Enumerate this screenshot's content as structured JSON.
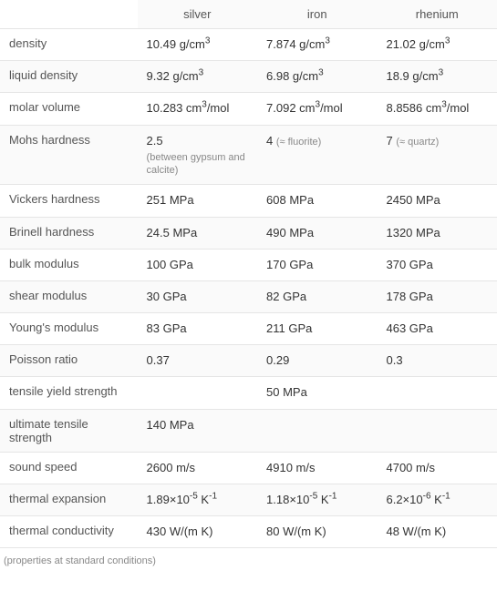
{
  "table": {
    "columns": [
      "silver",
      "iron",
      "rhenium"
    ],
    "rows": [
      {
        "label": "density",
        "cells": [
          {
            "value": "10.49 g/cm",
            "sup": "3"
          },
          {
            "value": "7.874 g/cm",
            "sup": "3"
          },
          {
            "value": "21.02 g/cm",
            "sup": "3"
          }
        ]
      },
      {
        "label": "liquid density",
        "cells": [
          {
            "value": "9.32 g/cm",
            "sup": "3"
          },
          {
            "value": "6.98 g/cm",
            "sup": "3"
          },
          {
            "value": "18.9 g/cm",
            "sup": "3"
          }
        ]
      },
      {
        "label": "molar volume",
        "cells": [
          {
            "value": "10.283 cm",
            "sup": "3",
            "suffix": "/mol"
          },
          {
            "value": "7.092 cm",
            "sup": "3",
            "suffix": "/mol"
          },
          {
            "value": "8.8586 cm",
            "sup": "3",
            "suffix": "/mol"
          }
        ]
      },
      {
        "label": "Mohs hardness",
        "cells": [
          {
            "value": "2.5",
            "note": "(between gypsum and calcite)"
          },
          {
            "value": "4 ",
            "inline_note": "(≈ fluorite)"
          },
          {
            "value": "7 ",
            "inline_note": "(≈ quartz)"
          }
        ]
      },
      {
        "label": "Vickers hardness",
        "cells": [
          {
            "value": "251 MPa"
          },
          {
            "value": "608 MPa"
          },
          {
            "value": "2450 MPa"
          }
        ]
      },
      {
        "label": "Brinell hardness",
        "cells": [
          {
            "value": "24.5 MPa"
          },
          {
            "value": "490 MPa"
          },
          {
            "value": "1320 MPa"
          }
        ]
      },
      {
        "label": "bulk modulus",
        "cells": [
          {
            "value": "100 GPa"
          },
          {
            "value": "170 GPa"
          },
          {
            "value": "370 GPa"
          }
        ]
      },
      {
        "label": "shear modulus",
        "cells": [
          {
            "value": "30 GPa"
          },
          {
            "value": "82 GPa"
          },
          {
            "value": "178 GPa"
          }
        ]
      },
      {
        "label": "Young's modulus",
        "cells": [
          {
            "value": "83 GPa"
          },
          {
            "value": "211 GPa"
          },
          {
            "value": "463 GPa"
          }
        ]
      },
      {
        "label": "Poisson ratio",
        "cells": [
          {
            "value": "0.37"
          },
          {
            "value": "0.29"
          },
          {
            "value": "0.3"
          }
        ]
      },
      {
        "label": "tensile yield strength",
        "cells": [
          {
            "value": ""
          },
          {
            "value": "50 MPa"
          },
          {
            "value": ""
          }
        ]
      },
      {
        "label": "ultimate tensile strength",
        "cells": [
          {
            "value": "140 MPa"
          },
          {
            "value": ""
          },
          {
            "value": ""
          }
        ]
      },
      {
        "label": "sound speed",
        "cells": [
          {
            "value": "2600 m/s"
          },
          {
            "value": "4910 m/s"
          },
          {
            "value": "4700 m/s"
          }
        ]
      },
      {
        "label": "thermal expansion",
        "cells": [
          {
            "value": "1.89×10",
            "sup": "-5",
            "suffix": " K",
            "sup2": "-1"
          },
          {
            "value": "1.18×10",
            "sup": "-5",
            "suffix": " K",
            "sup2": "-1"
          },
          {
            "value": "6.2×10",
            "sup": "-6",
            "suffix": " K",
            "sup2": "-1"
          }
        ]
      },
      {
        "label": "thermal conductivity",
        "cells": [
          {
            "value": "430 W/(m K)"
          },
          {
            "value": "80 W/(m K)"
          },
          {
            "value": "48 W/(m K)"
          }
        ]
      }
    ],
    "footer": "(properties at standard conditions)"
  }
}
